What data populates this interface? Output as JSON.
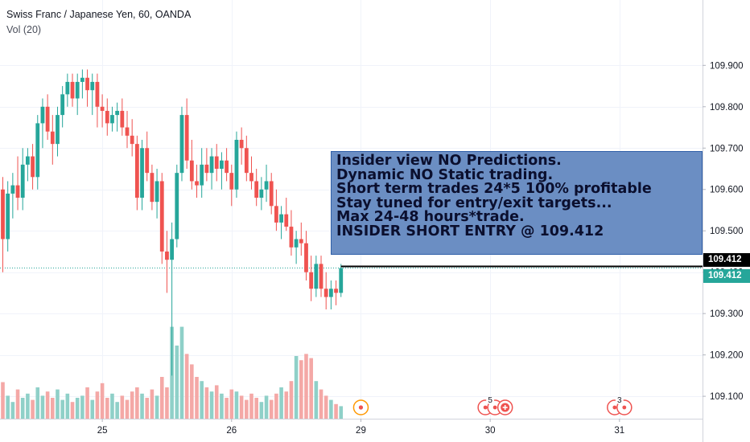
{
  "legend": {
    "symbol": "Swiss Franc / Japanese Yen, 60, OANDA",
    "volume": "Vol (20)"
  },
  "note": {
    "lines": [
      "Insider view NO Predictions.",
      "Dynamic NO Static trading.",
      "Short term trades 24*5 100% profitable",
      "Stay tuned for entry/exit targets...",
      "Max 24-48 hours*trade.",
      "INSIDER SHORT ENTRY @ 109.412"
    ]
  },
  "price_tags": {
    "entry": "109.412",
    "last": "109.412"
  },
  "colors": {
    "up": "#26a69a",
    "down": "#ef5350",
    "up_vol": "#8fd0c8",
    "down_vol": "#f4a8a6",
    "note_bg": "#6b8ec3"
  },
  "chart_data": {
    "type": "candlestick",
    "ylim": [
      109.04,
      109.99
    ],
    "y_ticks": [
      "109.100",
      "109.200",
      "109.300",
      "109.400",
      "109.500",
      "109.600",
      "109.700",
      "109.800",
      "109.900"
    ],
    "x_ticks": [
      {
        "label": "25",
        "index": 20
      },
      {
        "label": "26",
        "index": 46
      },
      {
        "label": "29",
        "index": 72
      },
      {
        "label": "30",
        "index": 98
      },
      {
        "label": "31",
        "index": 124
      }
    ],
    "entry_price": 109.412,
    "candles": [
      {
        "o": 109.6,
        "h": 109.63,
        "l": 109.4,
        "c": 109.48,
        "v": 0.35
      },
      {
        "o": 109.48,
        "h": 109.62,
        "l": 109.45,
        "c": 109.59,
        "v": 0.22
      },
      {
        "o": 109.59,
        "h": 109.64,
        "l": 109.53,
        "c": 109.61,
        "v": 0.16
      },
      {
        "o": 109.61,
        "h": 109.68,
        "l": 109.55,
        "c": 109.58,
        "v": 0.28
      },
      {
        "o": 109.58,
        "h": 109.7,
        "l": 109.55,
        "c": 109.66,
        "v": 0.2
      },
      {
        "o": 109.66,
        "h": 109.7,
        "l": 109.62,
        "c": 109.68,
        "v": 0.24
      },
      {
        "o": 109.68,
        "h": 109.71,
        "l": 109.6,
        "c": 109.63,
        "v": 0.18
      },
      {
        "o": 109.63,
        "h": 109.78,
        "l": 109.6,
        "c": 109.76,
        "v": 0.3
      },
      {
        "o": 109.76,
        "h": 109.82,
        "l": 109.7,
        "c": 109.8,
        "v": 0.22
      },
      {
        "o": 109.8,
        "h": 109.83,
        "l": 109.72,
        "c": 109.74,
        "v": 0.26
      },
      {
        "o": 109.74,
        "h": 109.78,
        "l": 109.66,
        "c": 109.71,
        "v": 0.2
      },
      {
        "o": 109.71,
        "h": 109.8,
        "l": 109.68,
        "c": 109.78,
        "v": 0.28
      },
      {
        "o": 109.78,
        "h": 109.85,
        "l": 109.75,
        "c": 109.83,
        "v": 0.18
      },
      {
        "o": 109.83,
        "h": 109.88,
        "l": 109.8,
        "c": 109.86,
        "v": 0.24
      },
      {
        "o": 109.86,
        "h": 109.88,
        "l": 109.8,
        "c": 109.82,
        "v": 0.16
      },
      {
        "o": 109.82,
        "h": 109.88,
        "l": 109.78,
        "c": 109.86,
        "v": 0.2
      },
      {
        "o": 109.86,
        "h": 109.89,
        "l": 109.82,
        "c": 109.87,
        "v": 0.22
      },
      {
        "o": 109.87,
        "h": 109.89,
        "l": 109.8,
        "c": 109.84,
        "v": 0.3
      },
      {
        "o": 109.84,
        "h": 109.88,
        "l": 109.78,
        "c": 109.86,
        "v": 0.18
      },
      {
        "o": 109.86,
        "h": 109.88,
        "l": 109.75,
        "c": 109.8,
        "v": 0.26
      },
      {
        "o": 109.8,
        "h": 109.83,
        "l": 109.75,
        "c": 109.79,
        "v": 0.34
      },
      {
        "o": 109.79,
        "h": 109.82,
        "l": 109.73,
        "c": 109.76,
        "v": 0.2
      },
      {
        "o": 109.76,
        "h": 109.8,
        "l": 109.74,
        "c": 109.78,
        "v": 0.24
      },
      {
        "o": 109.78,
        "h": 109.81,
        "l": 109.74,
        "c": 109.79,
        "v": 0.16
      },
      {
        "o": 109.79,
        "h": 109.82,
        "l": 109.73,
        "c": 109.75,
        "v": 0.22
      },
      {
        "o": 109.75,
        "h": 109.79,
        "l": 109.7,
        "c": 109.73,
        "v": 0.18
      },
      {
        "o": 109.73,
        "h": 109.77,
        "l": 109.68,
        "c": 109.71,
        "v": 0.26
      },
      {
        "o": 109.71,
        "h": 109.73,
        "l": 109.55,
        "c": 109.58,
        "v": 0.3
      },
      {
        "o": 109.58,
        "h": 109.72,
        "l": 109.55,
        "c": 109.7,
        "v": 0.24
      },
      {
        "o": 109.7,
        "h": 109.74,
        "l": 109.62,
        "c": 109.64,
        "v": 0.2
      },
      {
        "o": 109.64,
        "h": 109.66,
        "l": 109.55,
        "c": 109.57,
        "v": 0.28
      },
      {
        "o": 109.57,
        "h": 109.65,
        "l": 109.53,
        "c": 109.62,
        "v": 0.22
      },
      {
        "o": 109.62,
        "h": 109.64,
        "l": 109.42,
        "c": 109.45,
        "v": 0.4
      },
      {
        "o": 109.45,
        "h": 109.5,
        "l": 109.35,
        "c": 109.43,
        "v": 0.3
      },
      {
        "o": 109.43,
        "h": 109.52,
        "l": 109.15,
        "c": 109.48,
        "v": 0.88
      },
      {
        "o": 109.48,
        "h": 109.66,
        "l": 109.46,
        "c": 109.64,
        "v": 0.7
      },
      {
        "o": 109.64,
        "h": 109.8,
        "l": 109.62,
        "c": 109.78,
        "v": 0.88
      },
      {
        "o": 109.78,
        "h": 109.82,
        "l": 109.65,
        "c": 109.67,
        "v": 0.62
      },
      {
        "o": 109.67,
        "h": 109.72,
        "l": 109.6,
        "c": 109.62,
        "v": 0.52
      },
      {
        "o": 109.62,
        "h": 109.66,
        "l": 109.58,
        "c": 109.61,
        "v": 0.4
      },
      {
        "o": 109.61,
        "h": 109.7,
        "l": 109.58,
        "c": 109.66,
        "v": 0.36
      },
      {
        "o": 109.66,
        "h": 109.7,
        "l": 109.62,
        "c": 109.64,
        "v": 0.3
      },
      {
        "o": 109.64,
        "h": 109.7,
        "l": 109.6,
        "c": 109.68,
        "v": 0.26
      },
      {
        "o": 109.68,
        "h": 109.71,
        "l": 109.62,
        "c": 109.65,
        "v": 0.32
      },
      {
        "o": 109.65,
        "h": 109.69,
        "l": 109.6,
        "c": 109.67,
        "v": 0.24
      },
      {
        "o": 109.67,
        "h": 109.7,
        "l": 109.62,
        "c": 109.64,
        "v": 0.2
      },
      {
        "o": 109.64,
        "h": 109.66,
        "l": 109.56,
        "c": 109.6,
        "v": 0.28
      },
      {
        "o": 109.6,
        "h": 109.74,
        "l": 109.58,
        "c": 109.72,
        "v": 0.26
      },
      {
        "o": 109.72,
        "h": 109.75,
        "l": 109.66,
        "c": 109.7,
        "v": 0.22
      },
      {
        "o": 109.7,
        "h": 109.73,
        "l": 109.62,
        "c": 109.64,
        "v": 0.18
      },
      {
        "o": 109.64,
        "h": 109.68,
        "l": 109.6,
        "c": 109.62,
        "v": 0.24
      },
      {
        "o": 109.62,
        "h": 109.65,
        "l": 109.56,
        "c": 109.58,
        "v": 0.2
      },
      {
        "o": 109.58,
        "h": 109.63,
        "l": 109.55,
        "c": 109.6,
        "v": 0.16
      },
      {
        "o": 109.6,
        "h": 109.66,
        "l": 109.57,
        "c": 109.62,
        "v": 0.22
      },
      {
        "o": 109.62,
        "h": 109.64,
        "l": 109.54,
        "c": 109.56,
        "v": 0.18
      },
      {
        "o": 109.56,
        "h": 109.6,
        "l": 109.5,
        "c": 109.52,
        "v": 0.24
      },
      {
        "o": 109.52,
        "h": 109.56,
        "l": 109.48,
        "c": 109.54,
        "v": 0.3
      },
      {
        "o": 109.54,
        "h": 109.58,
        "l": 109.5,
        "c": 109.51,
        "v": 0.26
      },
      {
        "o": 109.51,
        "h": 109.55,
        "l": 109.44,
        "c": 109.46,
        "v": 0.36
      },
      {
        "o": 109.46,
        "h": 109.5,
        "l": 109.42,
        "c": 109.48,
        "v": 0.6
      },
      {
        "o": 109.48,
        "h": 109.52,
        "l": 109.44,
        "c": 109.47,
        "v": 0.56
      },
      {
        "o": 109.47,
        "h": 109.5,
        "l": 109.38,
        "c": 109.4,
        "v": 0.62
      },
      {
        "o": 109.4,
        "h": 109.44,
        "l": 109.33,
        "c": 109.36,
        "v": 0.58
      },
      {
        "o": 109.36,
        "h": 109.44,
        "l": 109.34,
        "c": 109.42,
        "v": 0.36
      },
      {
        "o": 109.42,
        "h": 109.44,
        "l": 109.34,
        "c": 109.36,
        "v": 0.28
      },
      {
        "o": 109.36,
        "h": 109.4,
        "l": 109.31,
        "c": 109.34,
        "v": 0.22
      },
      {
        "o": 109.34,
        "h": 109.38,
        "l": 109.31,
        "c": 109.36,
        "v": 0.18
      },
      {
        "o": 109.36,
        "h": 109.38,
        "l": 109.32,
        "c": 109.35,
        "v": 0.14
      },
      {
        "o": 109.35,
        "h": 109.42,
        "l": 109.34,
        "c": 109.41,
        "v": 0.12
      }
    ]
  },
  "events": [
    {
      "index": 72,
      "kind": "earnings",
      "label": ""
    },
    {
      "index": 98,
      "kind": "news-group",
      "label": "5"
    },
    {
      "index": 101,
      "kind": "dividend",
      "label": ""
    },
    {
      "index": 124,
      "kind": "news-group",
      "label": "3"
    }
  ]
}
